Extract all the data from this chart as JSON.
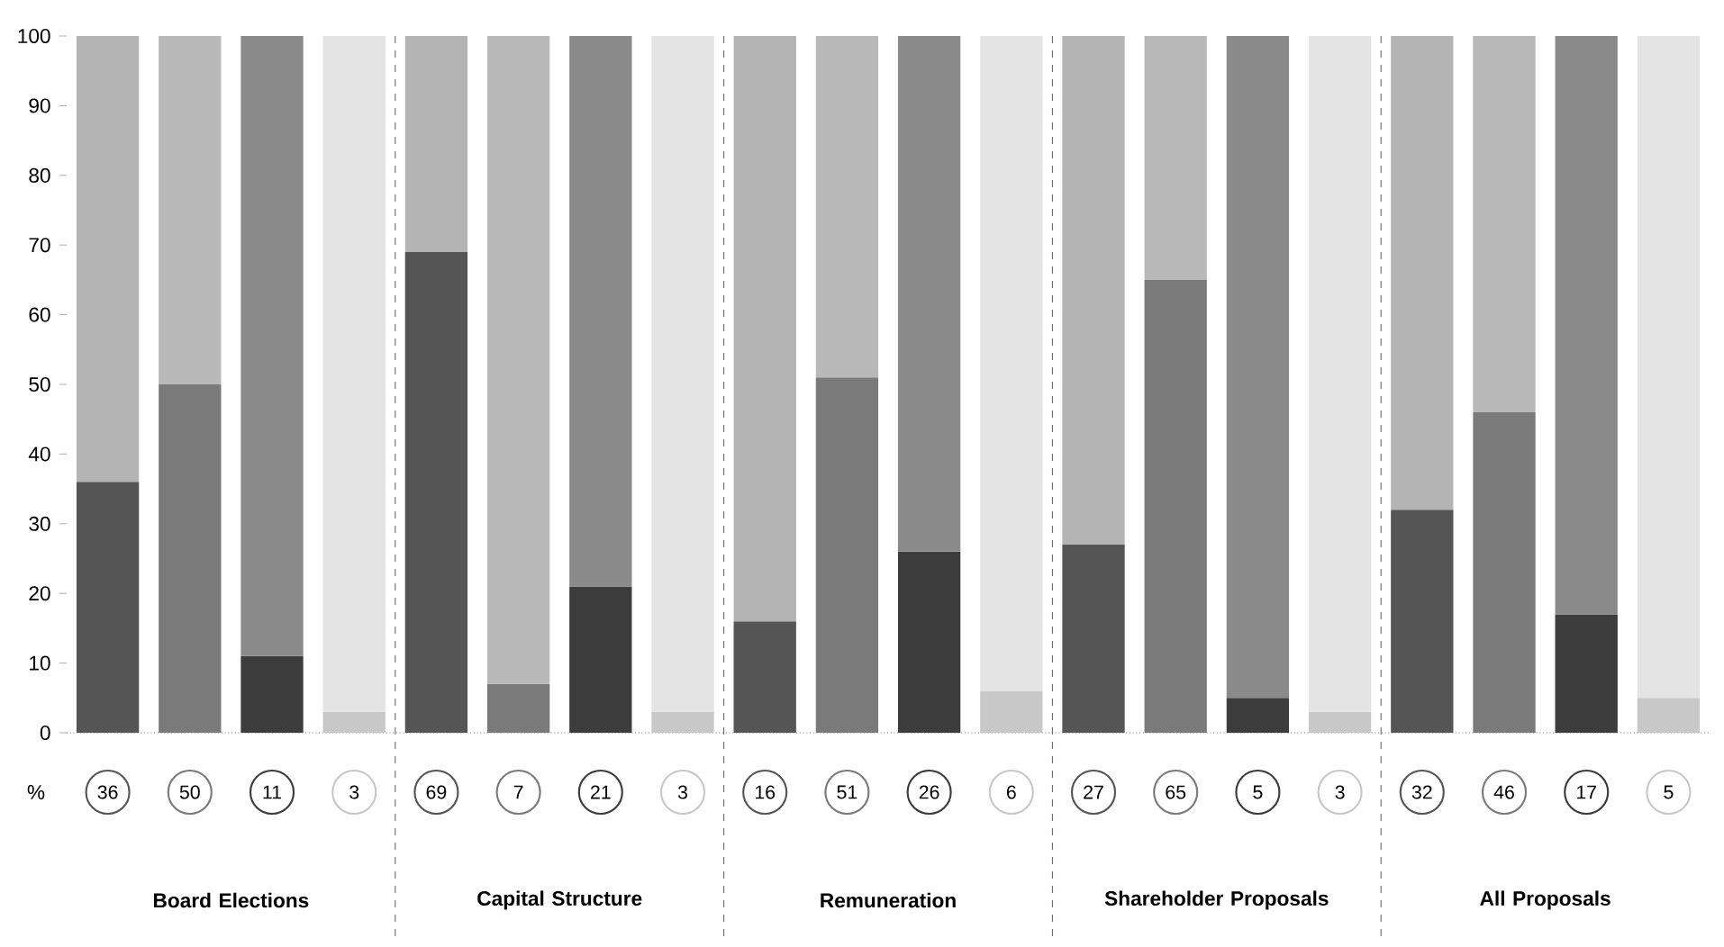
{
  "chart_data": {
    "type": "bar",
    "stacked": true,
    "ylabel": "%",
    "categories": [
      null,
      null,
      null,
      null,
      null,
      null,
      null,
      null,
      null,
      null,
      null,
      null,
      null,
      null,
      null,
      null,
      null,
      null,
      null,
      null
    ],
    "ylim": [
      0,
      100
    ],
    "yticks": [
      0,
      10,
      20,
      30,
      40,
      50,
      60,
      70,
      80,
      90,
      100
    ],
    "annotations": [
      "Board Elections",
      "Capital Structure",
      "Remuneration",
      "Shareholder Proposals",
      "All Proposals"
    ],
    "series": [
      {
        "values": [
          36,
          50,
          11,
          3,
          69,
          7,
          21,
          3,
          16,
          51,
          26,
          6,
          27,
          65,
          5,
          3,
          32,
          46,
          17,
          5
        ],
        "colors": [
          "#555555",
          "#7a7a7a",
          "#3c3c3c",
          "#c8c8c8",
          "#555555",
          "#7a7a7a",
          "#3c3c3c",
          "#c8c8c8",
          "#555555",
          "#7a7a7a",
          "#3c3c3c",
          "#c8c8c8",
          "#555555",
          "#7a7a7a",
          "#3c3c3c",
          "#c8c8c8",
          "#555555",
          "#7a7a7a",
          "#3c3c3c",
          "#c8c8c8"
        ],
        "value_labels": [
          "36",
          "50",
          "11",
          "3",
          "69",
          "7",
          "21",
          "3",
          "16",
          "51",
          "26",
          "6",
          "27",
          "65",
          "5",
          "3",
          "32",
          "46",
          "17",
          "5"
        ]
      },
      {
        "values": [
          64,
          50,
          89,
          97,
          31,
          93,
          79,
          97,
          84,
          49,
          74,
          94,
          73,
          35,
          95,
          97,
          68,
          54,
          83,
          95
        ],
        "colors": [
          "#b4b4b4",
          "#b9b9b9",
          "#8a8a8a",
          "#e4e4e4",
          "#b4b4b4",
          "#b9b9b9",
          "#8a8a8a",
          "#e4e4e4",
          "#b4b4b4",
          "#b9b9b9",
          "#8a8a8a",
          "#e4e4e4",
          "#b4b4b4",
          "#b9b9b9",
          "#8a8a8a",
          "#e4e4e4",
          "#b4b4b4",
          "#b9b9b9",
          "#8a8a8a",
          "#e4e4e4"
        ]
      }
    ]
  }
}
